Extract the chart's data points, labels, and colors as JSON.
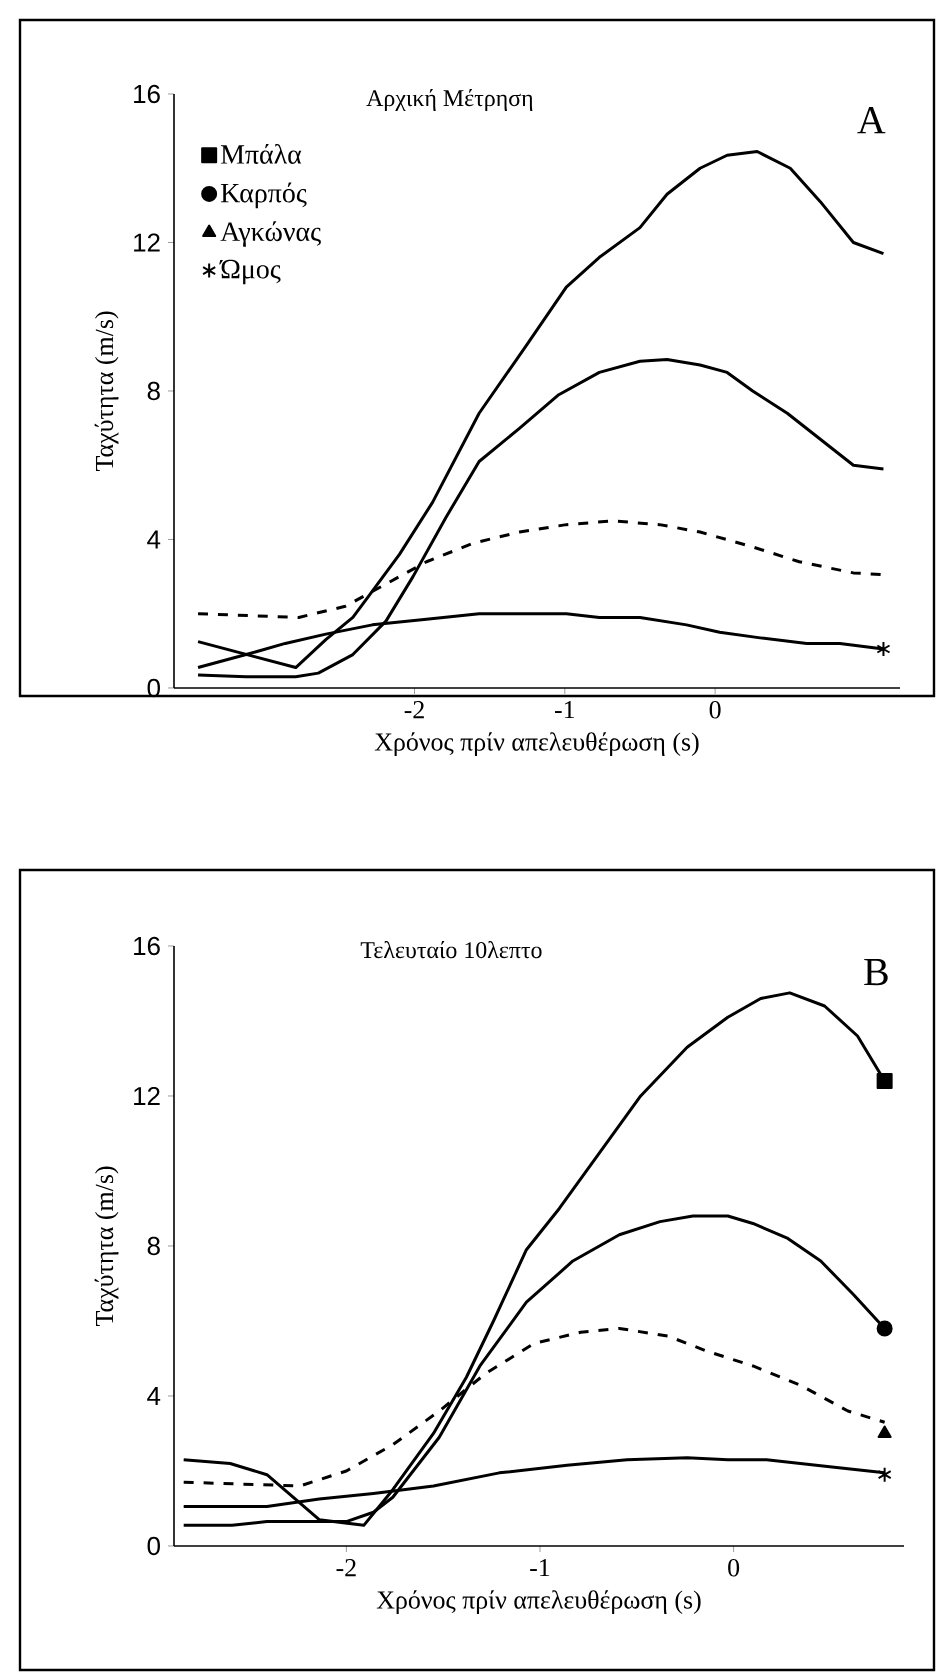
{
  "chart_data": [
    {
      "type": "line",
      "title": "Αρχική Μέτρηση",
      "xlabel": "Χρόνος πρίν απελευθέρωση (s)",
      "ylabel": "Ταχύτητα (m/s)",
      "annotations": [
        "A"
      ],
      "xlim": [
        -3.6,
        1.23
      ],
      "ylim": [
        0,
        16
      ],
      "xticks": [
        -2,
        -1,
        0
      ],
      "yticks": [
        0,
        4,
        8,
        12,
        16
      ],
      "grid": false,
      "legend": "top left",
      "series": [
        {
          "color": "#000000",
          "line_style": "solid",
          "x": [
            -3.44,
            -2.79,
            -2.59,
            -2.41,
            -2.3,
            -2.1,
            -1.88,
            -1.57,
            -1.26,
            -0.99,
            -0.77,
            -0.5,
            -0.32,
            -0.1,
            0.08,
            0.28,
            0.5,
            0.7,
            0.92,
            1.12
          ],
          "values": [
            1.25,
            0.55,
            1.3,
            1.9,
            2.5,
            3.6,
            5.0,
            7.4,
            9.2,
            10.8,
            11.6,
            12.4,
            13.3,
            14.0,
            14.35,
            14.45,
            14.0,
            13.1,
            12.0,
            11.7
          ]
        },
        {
          "color": "#000000",
          "line_style": "solid",
          "x": [
            -3.44,
            -3.12,
            -2.79,
            -2.64,
            -2.41,
            -2.19,
            -2.01,
            -1.79,
            -1.57,
            -1.3,
            -1.04,
            -0.77,
            -0.5,
            -0.32,
            -0.1,
            0.08,
            0.25,
            0.48,
            0.7,
            0.92,
            1.12
          ],
          "values": [
            0.35,
            0.3,
            0.3,
            0.4,
            0.9,
            1.8,
            3.0,
            4.6,
            6.1,
            7.0,
            7.9,
            8.5,
            8.8,
            8.85,
            8.7,
            8.5,
            8.0,
            7.4,
            6.7,
            6.0,
            5.9
          ]
        },
        {
          "color": "#000000",
          "line_style": "dashed",
          "x": [
            -3.44,
            -2.77,
            -2.46,
            -2.19,
            -1.92,
            -1.61,
            -1.3,
            -0.99,
            -0.68,
            -0.37,
            -0.1,
            0.25,
            0.56,
            0.92,
            1.12
          ],
          "values": [
            2.0,
            1.9,
            2.2,
            2.8,
            3.4,
            3.9,
            4.2,
            4.4,
            4.5,
            4.4,
            4.2,
            3.8,
            3.4,
            3.1,
            3.05
          ]
        },
        {
          "color": "#000000",
          "line_style": "solid",
          "x": [
            -3.44,
            -3.12,
            -2.86,
            -2.59,
            -2.28,
            -1.92,
            -1.57,
            -0.99,
            -0.77,
            -0.5,
            -0.19,
            0.03,
            0.3,
            0.61,
            0.83,
            1.12
          ],
          "values": [
            0.55,
            0.9,
            1.2,
            1.45,
            1.7,
            1.85,
            2.0,
            2.0,
            1.9,
            1.9,
            1.7,
            1.5,
            1.35,
            1.2,
            1.2,
            1.05
          ]
        },
        {
          "type": "scatter",
          "name": "Μπάλα",
          "color": "#000000",
          "marker": "square"
        },
        {
          "type": "scatter",
          "name": "Καρπός",
          "color": "#000000",
          "marker": "circle"
        },
        {
          "type": "scatter",
          "name": "Αγκώνας",
          "color": "#000000",
          "marker": "triangle"
        },
        {
          "type": "scatter",
          "name": "Ώμος",
          "color": "#000000",
          "marker": "cross",
          "x": [
            1.12
          ],
          "values": [
            1.05
          ]
        }
      ]
    },
    {
      "type": "line",
      "title": "Τελευταίο 10λεπτο",
      "xlabel": "Χρόνος πρίν απελευθέρωση (s)",
      "ylabel": "Ταχύτητα (m/s)",
      "annotations": [
        "B"
      ],
      "xlim": [
        -2.89,
        0.88
      ],
      "ylim": [
        0,
        16
      ],
      "xticks": [
        -2,
        -1,
        0
      ],
      "yticks": [
        0,
        4,
        8,
        12,
        16
      ],
      "grid": false,
      "series": [
        {
          "color": "#000000",
          "line_style": "solid",
          "x": [
            -2.84,
            -2.6,
            -2.41,
            -2.14,
            -1.91,
            -1.76,
            -1.55,
            -1.38,
            -1.24,
            -1.07,
            -0.9,
            -0.69,
            -0.48,
            -0.24,
            -0.03,
            0.14,
            0.29,
            0.47,
            0.64,
            0.78
          ],
          "values": [
            2.3,
            2.2,
            1.9,
            0.7,
            0.55,
            1.5,
            3.0,
            4.5,
            6.0,
            7.9,
            9.0,
            10.5,
            12.0,
            13.3,
            14.1,
            14.6,
            14.75,
            14.4,
            13.6,
            12.4
          ]
        },
        {
          "color": "#000000",
          "line_style": "solid",
          "x": [
            -2.84,
            -2.59,
            -2.41,
            -2.0,
            -1.86,
            -1.76,
            -1.52,
            -1.31,
            -1.07,
            -0.83,
            -0.59,
            -0.38,
            -0.21,
            -0.03,
            0.1,
            0.28,
            0.45,
            0.62,
            0.78
          ],
          "values": [
            0.55,
            0.55,
            0.65,
            0.65,
            0.9,
            1.3,
            2.9,
            4.8,
            6.5,
            7.6,
            8.3,
            8.65,
            8.8,
            8.8,
            8.6,
            8.2,
            7.6,
            6.7,
            5.8
          ]
        },
        {
          "color": "#000000",
          "line_style": "dashed",
          "x": [
            -2.84,
            -2.24,
            -2.0,
            -1.76,
            -1.52,
            -1.28,
            -1.03,
            -0.79,
            -0.59,
            -0.34,
            -0.14,
            0.1,
            0.34,
            0.59,
            0.78
          ],
          "values": [
            1.7,
            1.6,
            2.0,
            2.7,
            3.6,
            4.6,
            5.4,
            5.7,
            5.8,
            5.6,
            5.2,
            4.8,
            4.3,
            3.6,
            3.3
          ]
        },
        {
          "color": "#000000",
          "line_style": "solid",
          "x": [
            -2.84,
            -2.41,
            -2.14,
            -1.86,
            -1.55,
            -1.21,
            -0.86,
            -0.55,
            -0.24,
            -0.03,
            0.17,
            0.52,
            0.78
          ],
          "values": [
            1.05,
            1.05,
            1.25,
            1.4,
            1.6,
            1.95,
            2.15,
            2.3,
            2.35,
            2.3,
            2.3,
            2.1,
            1.95
          ]
        },
        {
          "type": "scatter",
          "color": "#000000",
          "marker": "square",
          "x": [
            0.78
          ],
          "values": [
            12.4
          ]
        },
        {
          "type": "scatter",
          "color": "#000000",
          "marker": "circle",
          "x": [
            0.78
          ],
          "values": [
            5.8
          ]
        },
        {
          "type": "scatter",
          "color": "#000000",
          "marker": "triangle",
          "x": [
            0.78
          ],
          "values": [
            3.0
          ]
        },
        {
          "type": "scatter",
          "color": "#000000",
          "marker": "cross",
          "x": [
            0.78
          ],
          "values": [
            1.9
          ]
        }
      ]
    }
  ]
}
